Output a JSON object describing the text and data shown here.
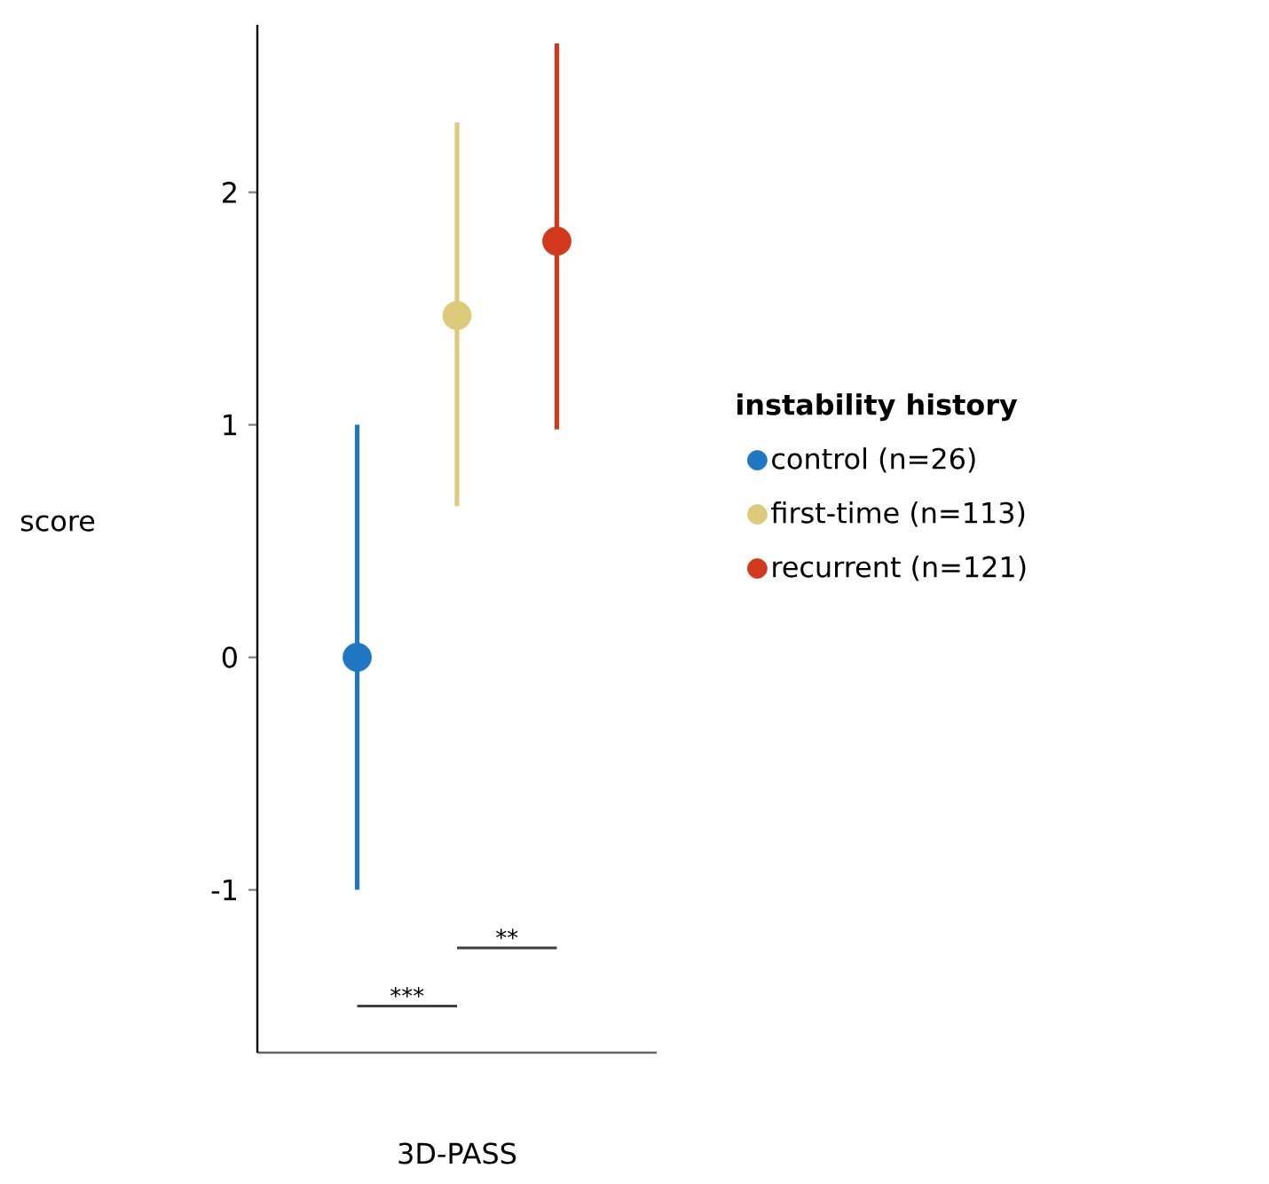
{
  "chart_data": {
    "type": "scatter",
    "ylabel": "score",
    "legend_title": "instability history",
    "xlabel": "3D-PASS",
    "categories": [
      null,
      null,
      null
    ],
    "series": [
      {
        "name": "control (n=26)",
        "color": "#1f77c4",
        "values": [
          0,
          null,
          null
        ],
        "errors": [
          [
            -1.0,
            1.0
          ],
          null,
          null
        ]
      },
      {
        "name": "first-time (n=113)",
        "color": "#dccb7a",
        "values": [
          null,
          1.47,
          null
        ],
        "errors": [
          null,
          [
            0.65,
            2.3
          ],
          null
        ]
      },
      {
        "name": "recurrent (n=121)",
        "color": "#d2391c",
        "values": [
          null,
          null,
          1.79
        ],
        "errors": [
          null,
          null,
          [
            0.98,
            2.64
          ]
        ]
      }
    ],
    "ylim": [
      -1.7,
      2.72
    ],
    "yticks": [
      -1,
      0,
      1,
      2
    ],
    "marker": "circle",
    "legend": "right",
    "grid": false,
    "annotations": [
      "***",
      "**"
    ]
  }
}
